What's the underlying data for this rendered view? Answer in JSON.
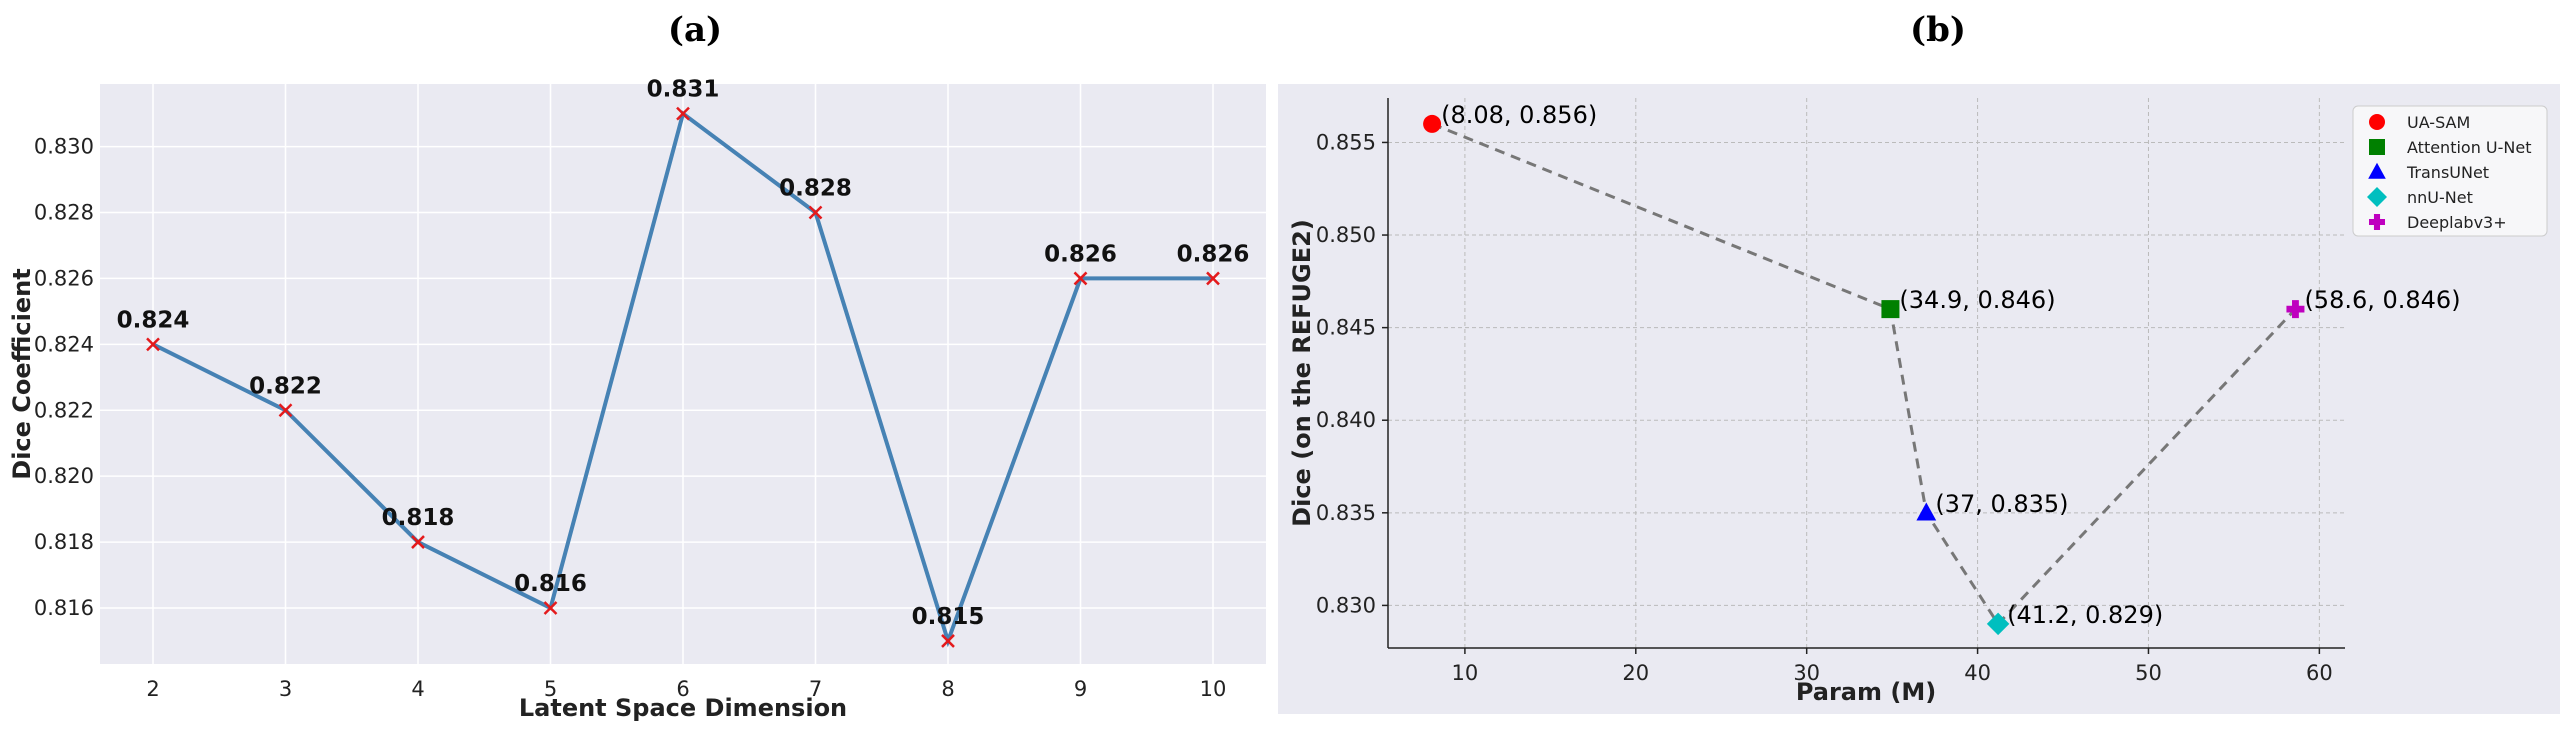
{
  "titles": {
    "a": "(a)",
    "b": "(b)"
  },
  "chart_data": [
    {
      "type": "line",
      "xlabel": "Latent Space Dimension",
      "ylabel": "Dice Coefficient",
      "x": [
        2,
        3,
        4,
        5,
        6,
        7,
        8,
        9,
        10
      ],
      "values": [
        0.824,
        0.822,
        0.818,
        0.816,
        0.831,
        0.828,
        0.815,
        0.826,
        0.826
      ],
      "data_labels": [
        "0.824",
        "0.822",
        "0.818",
        "0.816",
        "0.831",
        "0.828",
        "0.815",
        "0.826",
        "0.826"
      ],
      "xticks": [
        2,
        3,
        4,
        5,
        6,
        7,
        8,
        9,
        10
      ],
      "yticks": [
        0.816,
        0.818,
        0.82,
        0.822,
        0.824,
        0.826,
        0.828,
        0.83
      ],
      "ytick_labels": [
        "0.816",
        "0.818",
        "0.820",
        "0.822",
        "0.824",
        "0.826",
        "0.828",
        "0.830"
      ],
      "xlim": [
        1.6,
        10.4
      ],
      "ylim": [
        0.8143,
        0.8319
      ],
      "grid": true,
      "line_color": "#4682b4",
      "marker_color": "#e41a1c"
    },
    {
      "type": "scatter",
      "xlabel": "Param (M)",
      "ylabel": "Dice (on the REFUGE2)",
      "points": [
        {
          "name": "UA-SAM",
          "x": 8.08,
          "y": 0.856,
          "label": "(8.08, 0.856)",
          "marker": "circle",
          "color": "#ff0000"
        },
        {
          "name": "Attention U-Net",
          "x": 34.9,
          "y": 0.846,
          "label": "(34.9, 0.846)",
          "marker": "square",
          "color": "#008000"
        },
        {
          "name": "TransUNet",
          "x": 37,
          "y": 0.835,
          "label": "(37, 0.835)",
          "marker": "triangle",
          "color": "#0000ff"
        },
        {
          "name": "nnU-Net",
          "x": 41.2,
          "y": 0.829,
          "label": "(41.2, 0.829)",
          "marker": "diamond",
          "color": "#00bfbf"
        },
        {
          "name": "Deeplabv3+",
          "x": 58.6,
          "y": 0.846,
          "label": "(58.6, 0.846)",
          "marker": "plus",
          "color": "#bf00bf"
        }
      ],
      "connection_order": [
        "UA-SAM",
        "Attention U-Net",
        "TransUNet",
        "nnU-Net",
        "Deeplabv3+"
      ],
      "xticks": [
        10,
        20,
        30,
        40,
        50,
        60
      ],
      "xtick_labels": [
        "10",
        "20",
        "30",
        "40",
        "50",
        "60"
      ],
      "yticks": [
        0.83,
        0.835,
        0.84,
        0.845,
        0.85,
        0.855
      ],
      "ytick_labels": [
        "0.830",
        "0.835",
        "0.840",
        "0.845",
        "0.850",
        "0.855"
      ],
      "xlim": [
        5.5,
        61.5
      ],
      "ylim": [
        0.8277,
        0.8574
      ],
      "grid": true,
      "legend_position": "top-right",
      "line_color": "#777777"
    }
  ]
}
